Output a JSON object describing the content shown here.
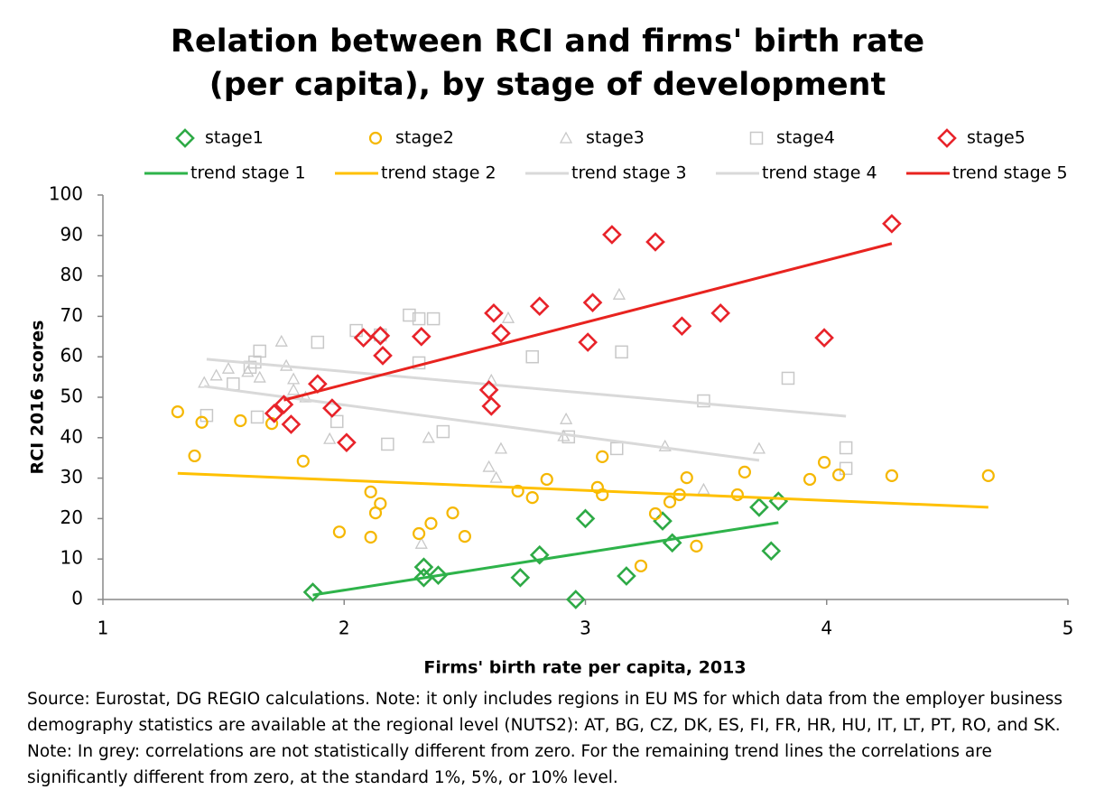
{
  "chart_data": {
    "type": "scatter",
    "title": "Relation between RCI and firms' birth rate (per capita), by stage of development",
    "x_label": "Firms' birth rate per capita, 2013",
    "y_label": "RCI 2016 scores",
    "note": "Source: Eurostat, DG REGIO calculations. Note: it only includes regions in EU MS for which data from the employer business demography statistics are available at the regional level (NUTS2): AT, BG, CZ, DK, ES, FI, FR, HR, HU, IT, LT, PT, RO, and SK. Note:  In grey: correlations are not statistically different from zero. For the remaining trend lines the correlations are significantly different from zero, at the standard 1%, 5%, or 10% level.",
    "xlim": [
      1,
      5
    ],
    "xticks": [
      1,
      2,
      3,
      4,
      5
    ],
    "ylim": [
      0,
      100
    ],
    "yticks": [
      0,
      10,
      20,
      30,
      40,
      50,
      60,
      70,
      80,
      90,
      100
    ],
    "series": [
      {
        "name": "stage1",
        "type": "scatter",
        "marker": "diamond",
        "color": "#2eaa46",
        "x": [
          1.87,
          2.33,
          2.33,
          2.39,
          2.73,
          2.81,
          2.96,
          3.0,
          3.17,
          3.32,
          3.36,
          3.72,
          3.8,
          3.77
        ],
        "values": [
          1.8,
          8,
          5.4,
          6,
          5.4,
          11,
          0,
          20,
          5.8,
          19.4,
          14,
          22.8,
          24.3,
          12
        ]
      },
      {
        "name": "stage2",
        "type": "scatter",
        "marker": "circle",
        "color": "#f5b700",
        "x": [
          1.31,
          1.41,
          1.38,
          1.57,
          1.7,
          1.83,
          1.98,
          2.11,
          2.13,
          2.15,
          2.11,
          2.31,
          2.36,
          2.45,
          2.5,
          2.72,
          2.78,
          2.84,
          3.07,
          3.05,
          3.07,
          3.23,
          3.29,
          3.35,
          3.39,
          3.42,
          3.46,
          3.63,
          3.66,
          3.93,
          3.99,
          4.05,
          4.27,
          4.67
        ],
        "values": [
          46.4,
          43.8,
          35.5,
          44.2,
          43.5,
          34.2,
          16.7,
          26.6,
          21.4,
          23.7,
          15.4,
          16.3,
          18.8,
          21.4,
          15.6,
          26.8,
          25.2,
          29.7,
          35.3,
          27.7,
          25.9,
          8.3,
          21.2,
          24.1,
          25.9,
          30.1,
          13.2,
          25.9,
          31.5,
          29.7,
          33.9,
          30.8,
          30.6,
          30.6
        ]
      },
      {
        "name": "stage3",
        "type": "scatter",
        "marker": "triangle",
        "color": "#c8c8c8",
        "x": [
          1.42,
          1.47,
          1.52,
          1.6,
          1.65,
          1.74,
          1.76,
          1.79,
          1.79,
          1.84,
          1.94,
          2.32,
          2.35,
          2.6,
          2.63,
          2.65,
          2.61,
          2.68,
          2.92,
          2.91,
          3.14,
          3.33,
          3.49,
          3.72
        ],
        "values": [
          53.6,
          55.4,
          57.1,
          56.3,
          54.9,
          63.8,
          57.8,
          54.5,
          51.8,
          50,
          39.7,
          13.8,
          40,
          32.8,
          30.1,
          37.3,
          54.2,
          69.6,
          44.6,
          40.4,
          75.4,
          37.9,
          27.2,
          37.3
        ]
      },
      {
        "name": "stage4",
        "type": "scatter",
        "marker": "square",
        "color": "#c8c8c8",
        "x": [
          1.43,
          1.54,
          1.61,
          1.63,
          1.65,
          1.64,
          1.89,
          1.97,
          2.05,
          2.15,
          2.18,
          2.27,
          2.31,
          2.37,
          2.31,
          2.41,
          2.78,
          2.93,
          3.13,
          3.15,
          3.49,
          3.84,
          4.08,
          4.08
        ],
        "values": [
          45.5,
          53.3,
          57.4,
          58.7,
          61.4,
          45.1,
          63.6,
          44,
          66.5,
          65.4,
          38.4,
          70.3,
          69.4,
          69.4,
          58.5,
          41.5,
          60,
          40.2,
          37.3,
          61.2,
          49.1,
          54.7,
          37.5,
          32.4
        ]
      },
      {
        "name": "stage5",
        "type": "scatter",
        "marker": "diamond",
        "color": "#e8232a",
        "x": [
          1.71,
          1.75,
          1.78,
          1.89,
          1.95,
          2.01,
          2.08,
          2.15,
          2.16,
          2.32,
          2.6,
          2.61,
          2.62,
          2.65,
          2.81,
          3.01,
          3.03,
          3.11,
          3.29,
          3.4,
          3.56,
          3.99,
          4.27
        ],
        "values": [
          46,
          48.2,
          43.3,
          53.3,
          47.3,
          38.8,
          64.7,
          65.2,
          60.3,
          65,
          51.8,
          47.8,
          70.8,
          65.8,
          72.5,
          63.6,
          73.4,
          90.2,
          88.4,
          67.6,
          70.8,
          64.7,
          92.9
        ]
      },
      {
        "name": "trend stage 1",
        "type": "line",
        "color": "#2eb34a",
        "x": [
          1.87,
          3.8
        ],
        "values": [
          1.1,
          19
        ]
      },
      {
        "name": "trend stage 2",
        "type": "line",
        "color": "#ffc000",
        "x": [
          1.31,
          4.67
        ],
        "values": [
          31.2,
          22.8
        ]
      },
      {
        "name": "trend stage 3",
        "type": "line",
        "color": "#d9d9d9",
        "x": [
          1.42,
          3.72
        ],
        "values": [
          52.7,
          34.4
        ]
      },
      {
        "name": "trend stage 4",
        "type": "line",
        "color": "#d9d9d9",
        "x": [
          1.43,
          4.08
        ],
        "values": [
          59.4,
          45.3
        ]
      },
      {
        "name": "trend stage 5",
        "type": "line",
        "color": "#e8231f",
        "x": [
          1.75,
          4.27
        ],
        "values": [
          49.3,
          88
        ]
      }
    ]
  }
}
